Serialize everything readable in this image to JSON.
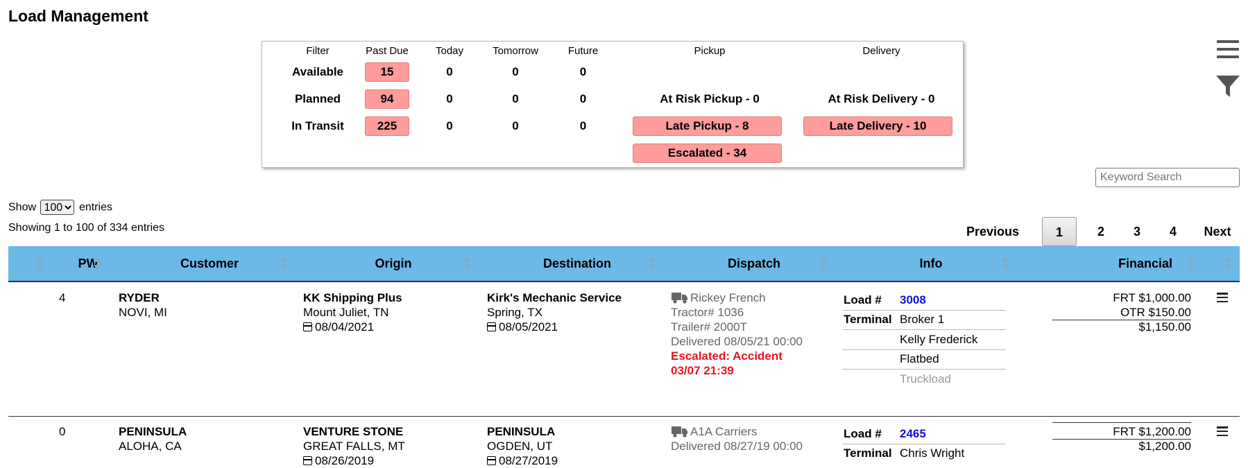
{
  "page": {
    "title": "Load Management"
  },
  "summary": {
    "headers": [
      "Filter",
      "Past Due",
      "Today",
      "Tomorrow",
      "Future",
      "Pickup",
      "Delivery"
    ],
    "rows": [
      {
        "label": "Available",
        "past_due": "15",
        "today": "0",
        "tomorrow": "0",
        "future": "0"
      },
      {
        "label": "Planned",
        "past_due": "94",
        "today": "0",
        "tomorrow": "0",
        "future": "0"
      },
      {
        "label": "In Transit",
        "past_due": "225",
        "today": "0",
        "tomorrow": "0",
        "future": "0"
      }
    ],
    "pickup": {
      "at_risk": "At Risk Pickup -   0",
      "late": "Late Pickup -   8",
      "escalated": "Escalated -   34"
    },
    "delivery": {
      "at_risk": "At Risk Delivery -   0",
      "late": "Late Delivery -   10"
    },
    "badge_color": "#ff9c9c"
  },
  "toolbar": {
    "menu_icon": "hamburger-menu-icon",
    "filter_icon": "filter-funnel-icon",
    "search_placeholder": "Keyword Search"
  },
  "list": {
    "show_label": "Show",
    "entries_label": "entries",
    "page_size": "100",
    "info": "Showing 1 to 100 of 334 entries"
  },
  "pager": {
    "previous": "Previous",
    "pages": [
      "1",
      "2",
      "3",
      "4"
    ],
    "next": "Next",
    "current": "1"
  },
  "table": {
    "header_color": "#6cb8e6",
    "columns": [
      "PW",
      "Customer",
      "Origin",
      "Destination",
      "Dispatch",
      "Info",
      "Financial"
    ],
    "rows": [
      {
        "pw": "4",
        "customer": "RYDER",
        "customer_loc": "NOVI, MI",
        "origin": "KK Shipping Plus",
        "origin_loc": "Mount Juliet, TN",
        "origin_date": "08/04/2021",
        "destination": "Kirk's Mechanic Service",
        "destination_loc": "Spring, TX",
        "destination_date": "08/05/2021",
        "carrier": "Rickey French",
        "tractor": "Tractor# 1036",
        "trailer": "Trailer# 2000T",
        "delivered": "Delivered 08/05/21 00:00",
        "escalated_1": "Escalated: Accident",
        "escalated_2": "03/07 21:39",
        "load_label": "Load #",
        "load_no": "3008",
        "terminal_label": "Terminal",
        "terminal": "Broker 1",
        "rep": "Kelly Frederick",
        "equipment": "Flatbed",
        "mode": "Truckload",
        "frt": "FRT $1,000.00",
        "otr": "OTR $150.00",
        "total": "$1,150.00"
      },
      {
        "pw": "0",
        "customer": "PENINSULA",
        "customer_loc": "ALOHA, CA",
        "origin": "VENTURE STONE",
        "origin_loc": "GREAT FALLS, MT",
        "origin_date": "08/26/2019",
        "destination": "PENINSULA",
        "destination_loc": "OGDEN, UT",
        "destination_date": "08/27/2019",
        "carrier": "A1A Carriers",
        "delivered": "Delivered 08/27/19 00:00",
        "load_label": "Load #",
        "load_no": "2465",
        "terminal_label": "Terminal",
        "terminal": "Chris Wright",
        "frt": "FRT $1,200.00",
        "total": "$1,200.00"
      }
    ]
  }
}
